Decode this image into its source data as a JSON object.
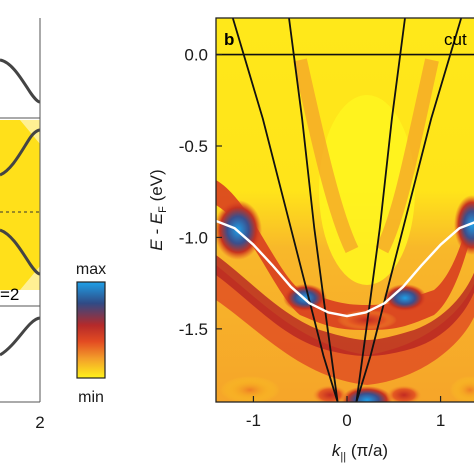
{
  "left_panel": {
    "x_tick_right": "2",
    "partial_label": "=2"
  },
  "colorbar": {
    "max_label": "max",
    "min_label": "min",
    "colors": [
      "#1fa0e8",
      "#2f4b86",
      "#b52a2a",
      "#e34b22",
      "#f39f2a",
      "#fff21a"
    ]
  },
  "main_panel": {
    "panel_letter": "b",
    "cut_label": "cut",
    "background_color": "#ffe81a",
    "high_color": "#1f9ee6",
    "mid_color": "#d8391e"
  },
  "chart_data": {
    "type": "heatmap",
    "title": "",
    "xlabel_main": "k",
    "xlabel_sub": "||",
    "xlabel_units": " (π/a)",
    "ylabel_main": "E - E",
    "ylabel_sub": "F",
    "ylabel_units": " (eV)",
    "xlim": [
      -1.4,
      1.4
    ],
    "ylim": [
      -1.9,
      0.2
    ],
    "x_ticks": [
      {
        "value": -1,
        "label": "-1"
      },
      {
        "value": 0,
        "label": "0"
      },
      {
        "value": 1,
        "label": "1"
      }
    ],
    "y_ticks": [
      {
        "value": 0.0,
        "label": "0.0"
      },
      {
        "value": -0.5,
        "label": "-0.5"
      },
      {
        "value": -1.0,
        "label": "-1.0"
      },
      {
        "value": -1.5,
        "label": "-1.5"
      }
    ],
    "fermi_level": 0.0,
    "white_band": {
      "description": "cosine dispersion overlay",
      "x": [
        -1.4,
        -1.2,
        -1.0,
        -0.8,
        -0.6,
        -0.4,
        -0.2,
        0.0,
        0.2,
        0.4,
        0.6,
        0.8,
        1.0,
        1.2,
        1.4
      ],
      "y": [
        -0.91,
        -0.95,
        -1.04,
        -1.15,
        -1.27,
        -1.36,
        -1.41,
        -1.43,
        -1.41,
        -1.36,
        -1.27,
        -1.15,
        -1.04,
        -0.95,
        -0.91
      ]
    },
    "black_parabolas": [
      {
        "x": [
          -1.22,
          -0.9,
          -0.6,
          -0.4,
          -0.25,
          -0.1
        ],
        "y": [
          0.2,
          -0.35,
          -0.95,
          -1.35,
          -1.65,
          -1.9
        ]
      },
      {
        "x": [
          -0.62,
          -0.48,
          -0.35,
          -0.22,
          -0.1
        ],
        "y": [
          0.2,
          -0.35,
          -0.95,
          -1.45,
          -1.9
        ]
      },
      {
        "x": [
          0.1,
          0.22,
          0.35,
          0.48,
          0.62
        ],
        "y": [
          -1.9,
          -1.45,
          -0.95,
          -0.35,
          0.2
        ]
      },
      {
        "x": [
          0.1,
          0.25,
          0.4,
          0.6,
          0.9,
          1.22
        ],
        "y": [
          -1.9,
          -1.65,
          -1.35,
          -0.95,
          -0.35,
          0.2
        ]
      }
    ]
  }
}
